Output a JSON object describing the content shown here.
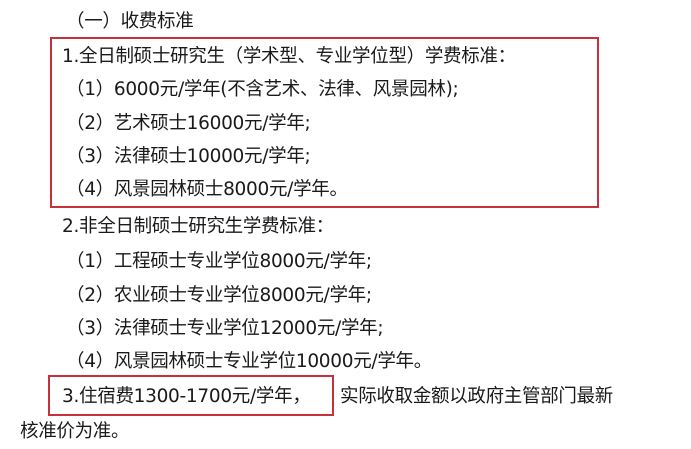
{
  "heading": "（一）收费标准",
  "section1": {
    "title": "1.全日制硕士研究生（学术型、专业学位型）学费标准：",
    "items": [
      "（1）6000元/学年(不含艺术、法律、风景园林);",
      "（2）艺术硕士16000元/学年;",
      "（3）法律硕士10000元/学年;",
      "（4）风景园林硕士8000元/学年。"
    ]
  },
  "section2": {
    "title": "2.非全日制硕士研究生学费标准：",
    "items": [
      "（1）工程硕士专业学位8000元/学年;",
      "（2）农业硕士专业学位8000元/学年;",
      "（3）法律硕士专业学位12000元/学年;",
      "（4）风景园林硕士专业学位10000元/学年。"
    ]
  },
  "section3": {
    "highlight": "3.住宿费1300-1700元/学年，",
    "rest_line1": "实际收取金额以政府主管部门最新",
    "rest_line2": "核准价为准。"
  },
  "colors": {
    "highlight_box": "#c8303a",
    "text": "#1a1a1a"
  }
}
